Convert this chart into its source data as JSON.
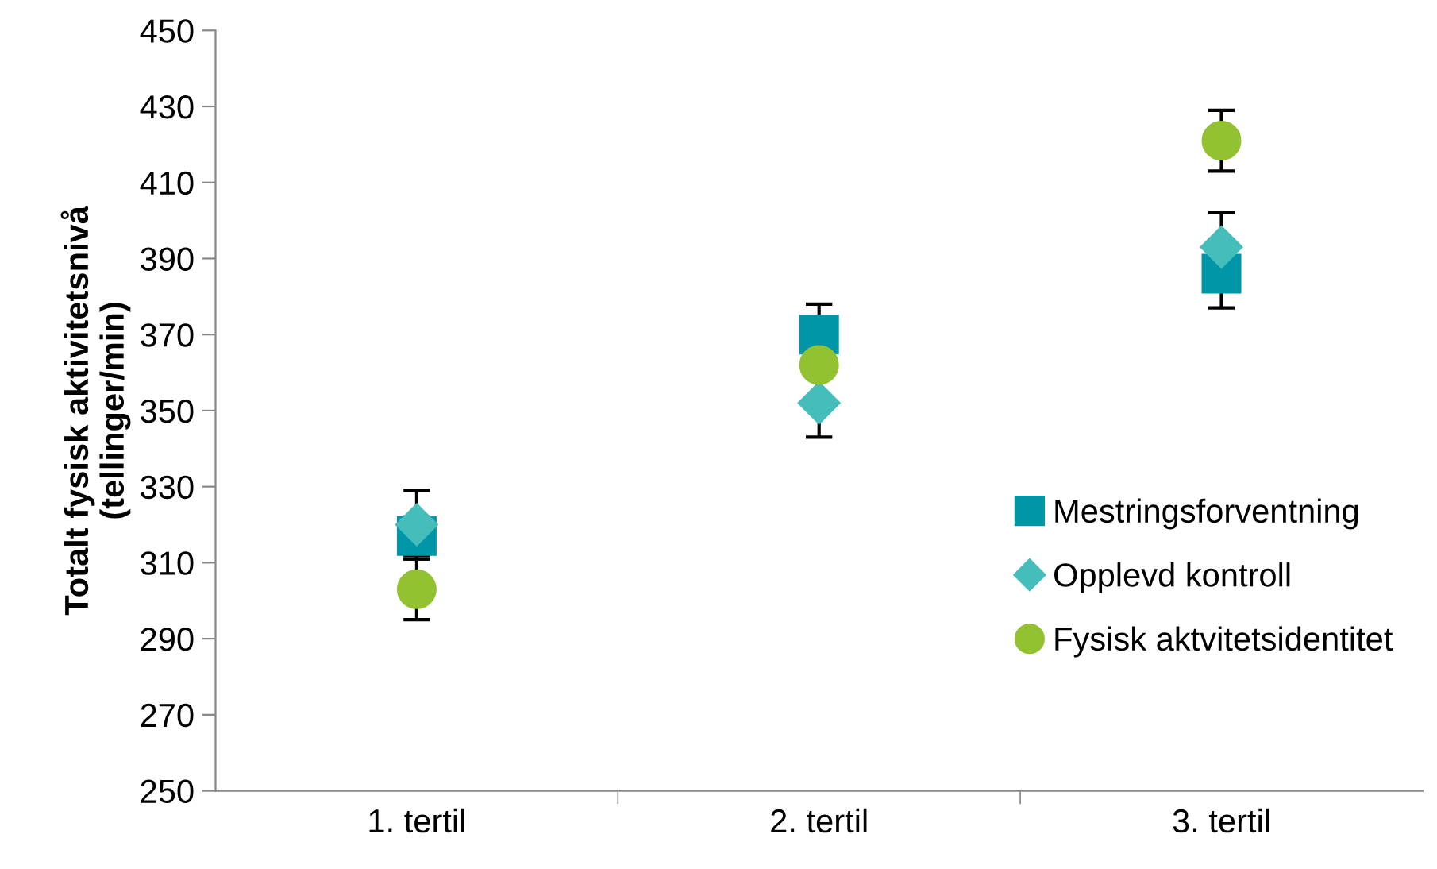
{
  "chart_data": {
    "type": "scatter",
    "ylabel": "Totalt fysisk aktivitetsnivå\n(tellinger/min)",
    "categories": [
      "1. tertil",
      "2. tertil",
      "3. tertil"
    ],
    "series": [
      {
        "name": "Mestringsforventning",
        "color": "#0096a8",
        "marker": "square",
        "values": [
          317,
          370,
          386
        ],
        "errors": [
          5,
          8,
          9
        ]
      },
      {
        "name": "Opplevd kontroll",
        "color": "#45bdbb",
        "marker": "diamond",
        "values": [
          320,
          352,
          393
        ],
        "errors": [
          9,
          9,
          9
        ]
      },
      {
        "name": "Fysisk aktvitetsidentitet",
        "color": "#92c131",
        "marker": "circle",
        "values": [
          303,
          362,
          421
        ],
        "errors": [
          8,
          null,
          8
        ]
      }
    ],
    "ylim": [
      250,
      450
    ],
    "yticks": [
      250,
      270,
      290,
      310,
      330,
      350,
      370,
      390,
      410,
      430,
      450
    ],
    "grid": false,
    "legend": "right"
  }
}
